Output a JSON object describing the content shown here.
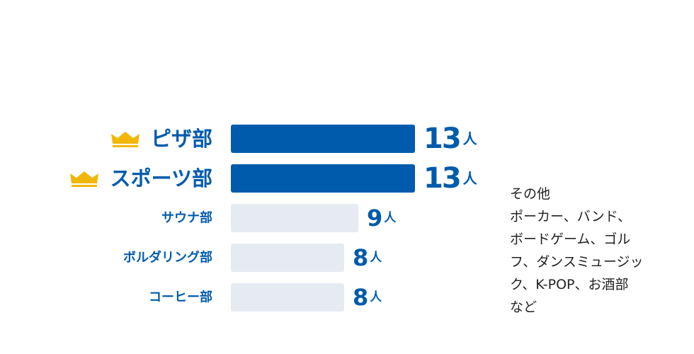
{
  "chart_data": {
    "type": "bar",
    "orientation": "horizontal",
    "categories": [
      "ピザ部",
      "スポーツ部",
      "サウナ部",
      "ボルダリング部",
      "コーヒー部"
    ],
    "values": [
      13,
      13,
      9,
      8,
      8
    ],
    "unit": "人",
    "top_ranked": [
      true,
      true,
      false,
      false,
      false
    ],
    "xlim": [
      0,
      13
    ],
    "grid": false,
    "colors": {
      "highlight": "#005BAC",
      "normal": "#E6EAF1",
      "label": "#005BAC",
      "crown": "#F2B705"
    }
  },
  "side_note": {
    "lines": [
      "その他",
      "ポーカー、バンド、",
      "ボードゲーム、ゴル",
      "フ、ダンスミュージッ",
      "ク、K-POP、お酒部",
      "など"
    ]
  }
}
